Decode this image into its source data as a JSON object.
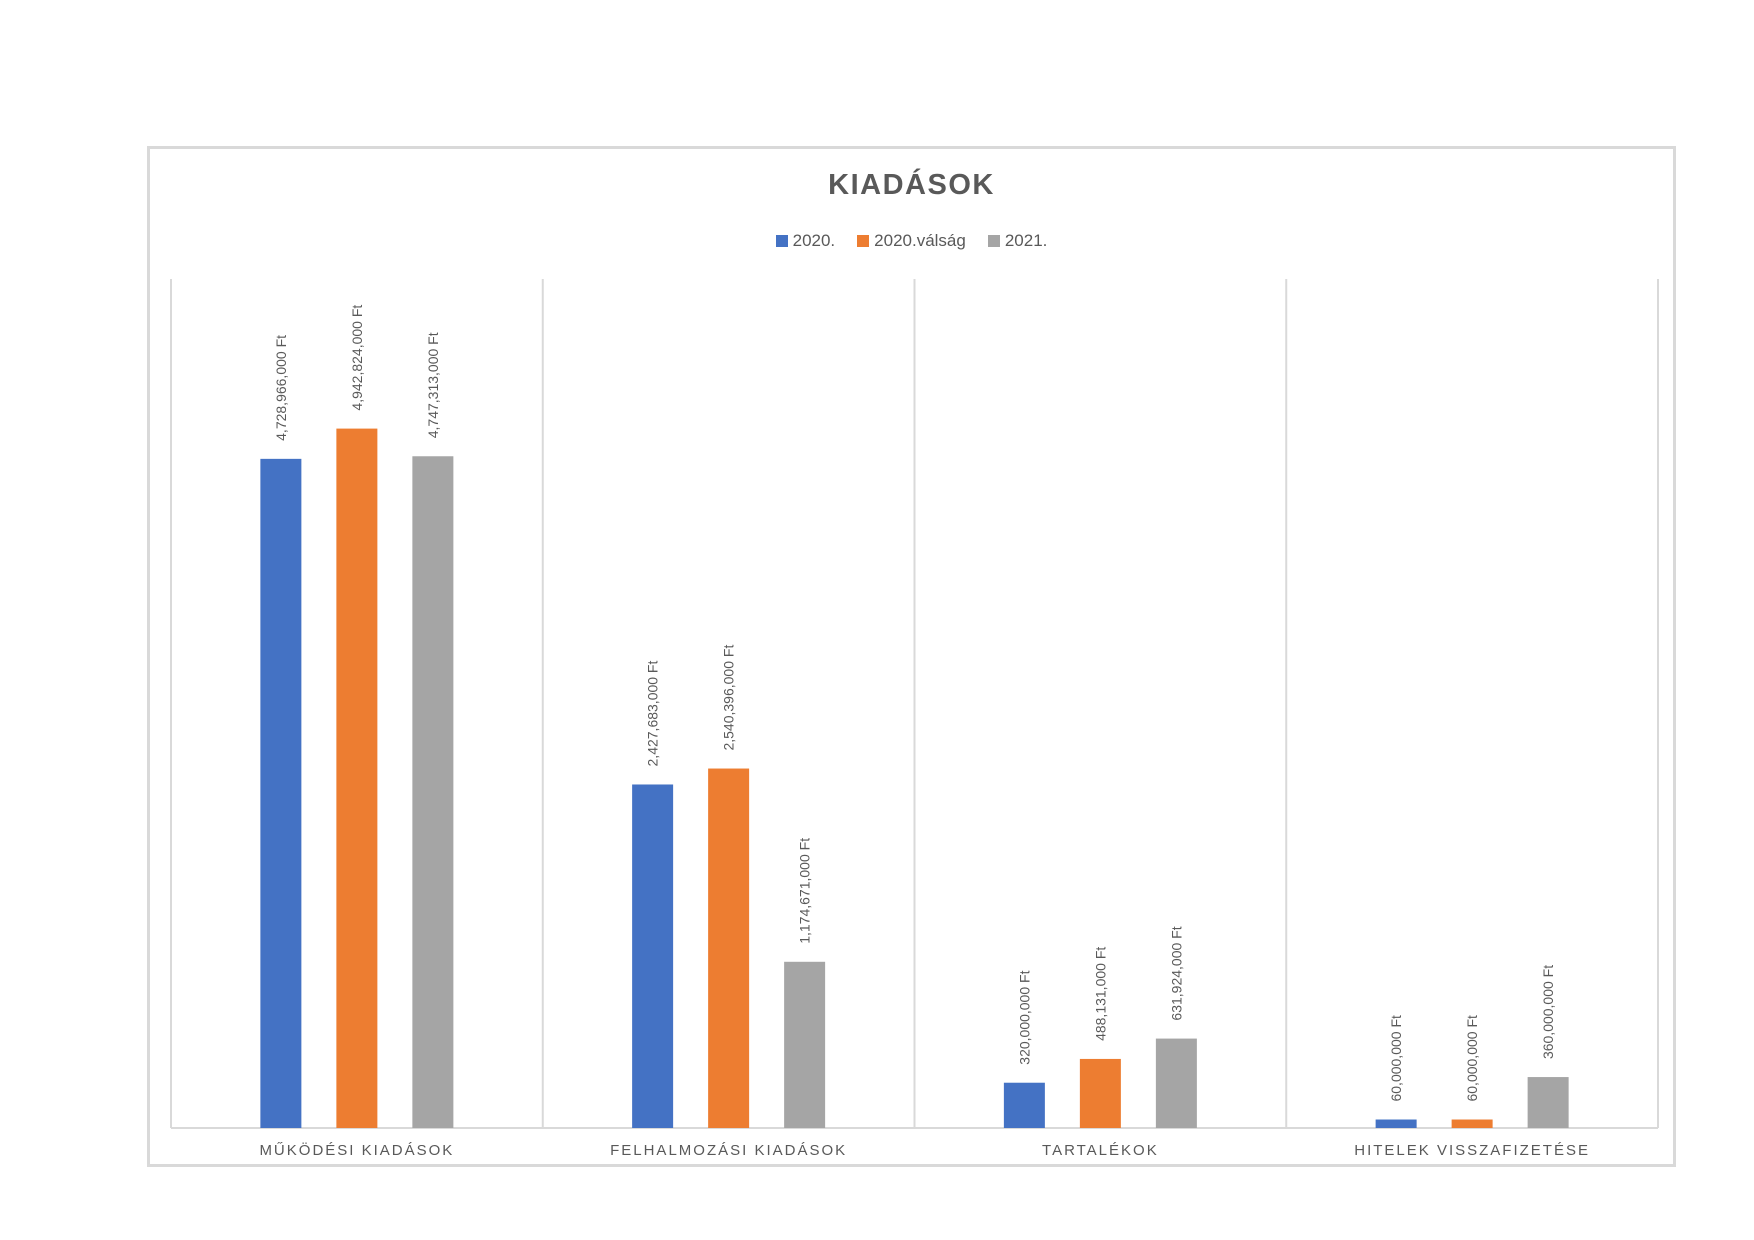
{
  "chart_data": {
    "type": "bar",
    "title": "KIADÁSOK",
    "categories": [
      "MŰKÖDÉSI KIADÁSOK",
      "FELHALMOZÁSI KIADÁSOK",
      "TARTALÉKOK",
      "HITELEK VISSZAFIZETÉSE"
    ],
    "series": [
      {
        "name": "2020.",
        "color": "#4472C4",
        "values": [
          4728966000,
          2427683000,
          320000000,
          60000000
        ],
        "labels": [
          "4,728,966,000 Ft",
          "2,427,683,000 Ft",
          "320,000,000 Ft",
          "60,000,000 Ft"
        ]
      },
      {
        "name": "2020.válság",
        "color": "#ED7D31",
        "values": [
          4942824000,
          2540396000,
          488131000,
          60000000
        ],
        "labels": [
          "4,942,824,000 Ft",
          "2,540,396,000 Ft",
          "488,131,000 Ft",
          "60,000,000 Ft"
        ]
      },
      {
        "name": "2021.",
        "color": "#A5A5A5",
        "values": [
          4747313000,
          1174671000,
          631924000,
          360000000
        ],
        "labels": [
          "4,747,313,000 Ft",
          "1,174,671,000 Ft",
          "631,924,000 Ft",
          "360,000,000 Ft"
        ]
      }
    ],
    "ylim": [
      0,
      6000000000
    ],
    "legend_position": "top",
    "grid": "vertical category separators",
    "xlabel": "",
    "ylabel": ""
  }
}
